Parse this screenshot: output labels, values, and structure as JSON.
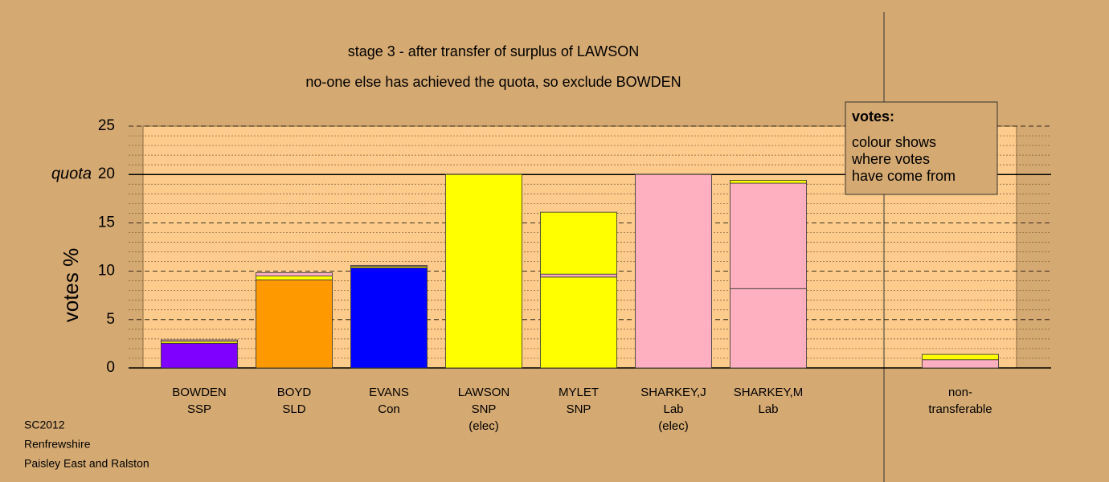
{
  "chart_data": {
    "type": "stacked-bar",
    "title": "stage 3 - after transfer of surplus of LAWSON",
    "subtitle": "no-one else has achieved the quota, so exclude BOWDEN",
    "y_label": "votes %",
    "ylim": [
      0,
      25
    ],
    "yticks": [
      0,
      5,
      10,
      15,
      20,
      25
    ],
    "minor_ytick_step": 1,
    "quota": 20,
    "quota_label": "quota",
    "legend": {
      "title": "votes:",
      "lines": [
        "colour shows",
        "where votes",
        "have come from"
      ]
    },
    "stacks": [
      {
        "label": [
          "BOWDEN",
          "SSP"
        ],
        "segments": [
          {
            "value": 2.55,
            "color": "#8000ff"
          },
          {
            "value": 0.2,
            "color": "#ffff00"
          },
          {
            "value": 0.15,
            "color": "#ffb0c0"
          }
        ]
      },
      {
        "label": [
          "BOYD",
          "SLD"
        ],
        "segments": [
          {
            "value": 9.1,
            "color": "#ff9900"
          },
          {
            "value": 0.4,
            "color": "#ffff00"
          },
          {
            "value": 0.35,
            "color": "#ffb0c0"
          }
        ]
      },
      {
        "label": [
          "EVANS",
          "Con"
        ],
        "segments": [
          {
            "value": 10.35,
            "color": "#0000ff"
          },
          {
            "value": 0.15,
            "color": "#ffff00"
          },
          {
            "value": 0.1,
            "color": "#ffb0c0"
          }
        ]
      },
      {
        "label": [
          "LAWSON",
          "SNP",
          "(elec)"
        ],
        "segments": [
          {
            "value": 20,
            "color": "#ffff00"
          }
        ]
      },
      {
        "label": [
          "MYLET",
          "SNP"
        ],
        "segments": [
          {
            "value": 9.4,
            "color": "#ffff00"
          },
          {
            "value": 0.3,
            "color": "#ffb0c0"
          },
          {
            "value": 6.4,
            "color": "#ffff00"
          }
        ]
      },
      {
        "label": [
          "SHARKEY,J",
          "Lab",
          "(elec)"
        ],
        "segments": [
          {
            "value": 20,
            "color": "#ffb0c0"
          }
        ]
      },
      {
        "label": [
          "SHARKEY,M",
          "Lab"
        ],
        "segments": [
          {
            "value": 8.2,
            "color": "#ffb0c0"
          },
          {
            "value": 10.9,
            "color": "#ffb0c0"
          },
          {
            "value": 0.3,
            "color": "#ffff00"
          }
        ]
      }
    ],
    "non_transferable": {
      "label": [
        "non-",
        "transferable"
      ],
      "segments": [
        {
          "value": 0.85,
          "color": "#ffb0c0"
        },
        {
          "value": 0.55,
          "color": "#ffff00"
        }
      ]
    },
    "footer": [
      "SC2012",
      "Renfrewshire",
      "Paisley East and Ralston"
    ]
  }
}
